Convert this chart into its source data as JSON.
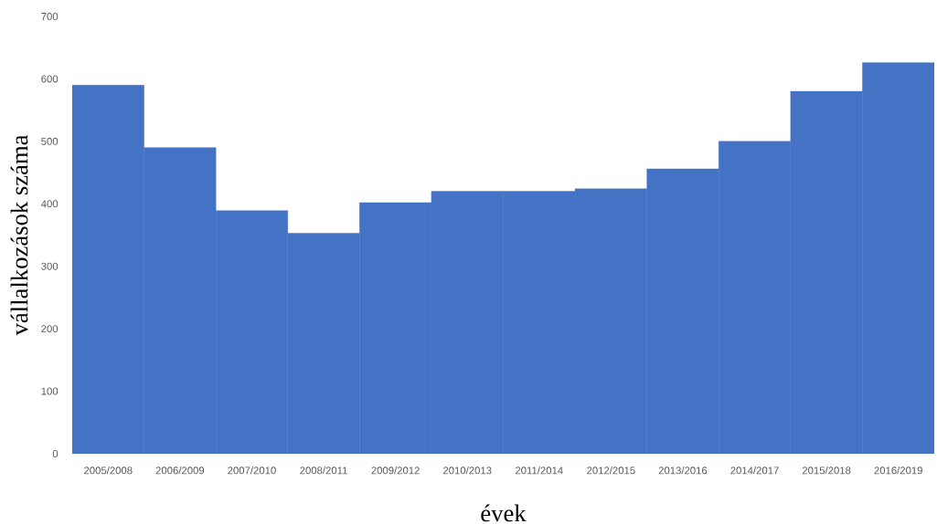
{
  "chart_data": {
    "type": "bar",
    "xlabel": "évek",
    "ylabel": "vállalkozások száma",
    "categories": [
      "2005/2008",
      "2006/2009",
      "2007/2010",
      "2008/2011",
      "2009/2012",
      "2010/2013",
      "2011/2014",
      "2012/2015",
      "2013/2016",
      "2014/2017",
      "2015/2018",
      "2016/2019"
    ],
    "values": [
      590,
      490,
      389,
      353,
      402,
      420,
      420,
      424,
      456,
      500,
      580,
      626
    ],
    "color": "#4472c4",
    "ylim": [
      0,
      700
    ],
    "yticks": [
      0,
      100,
      200,
      300,
      400,
      500,
      600,
      700
    ]
  }
}
